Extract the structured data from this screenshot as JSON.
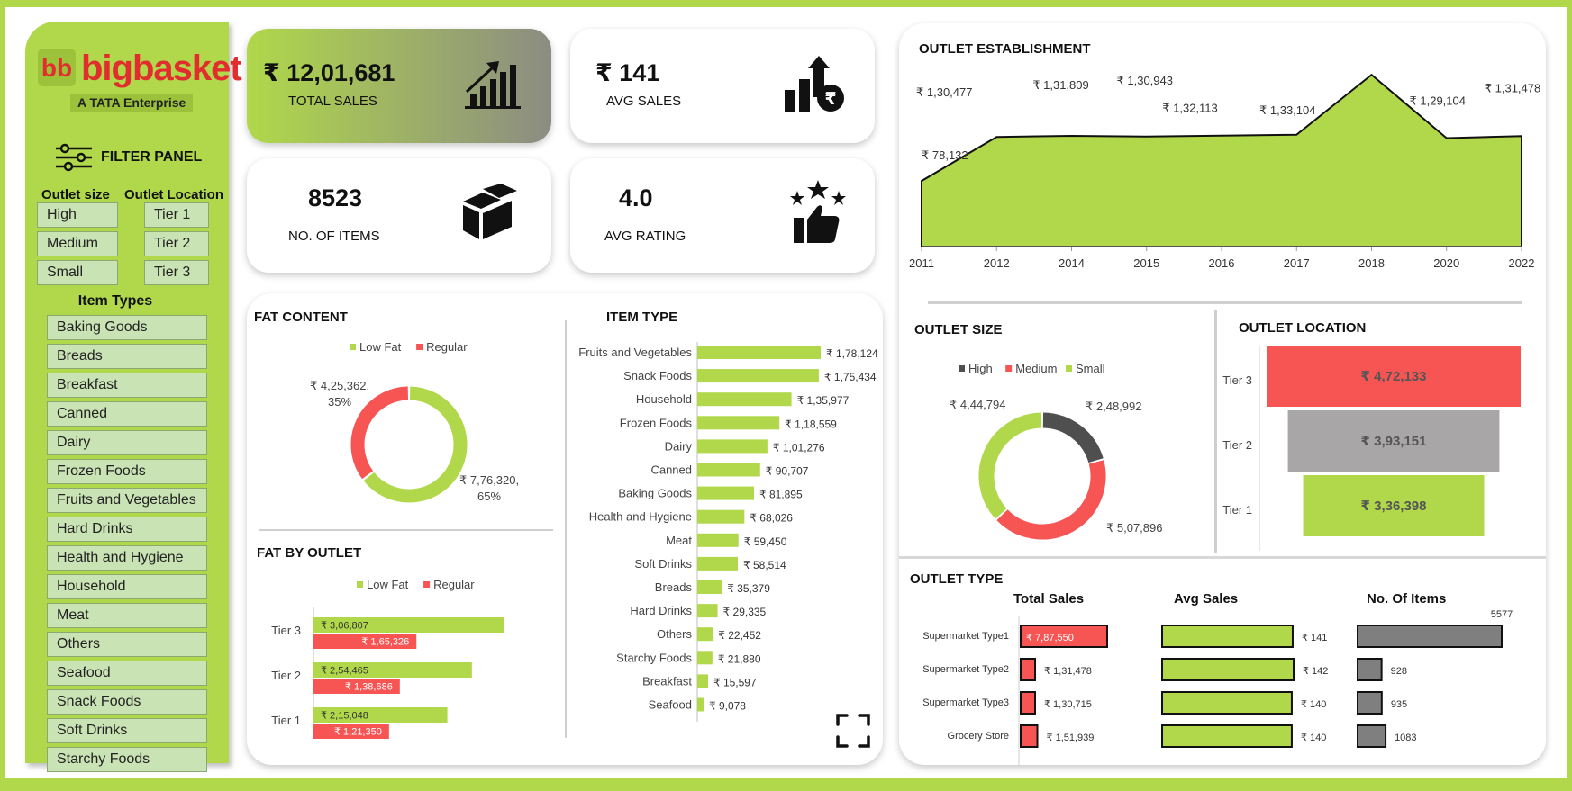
{
  "brand": {
    "name": "bigbasket",
    "subtitle": "A TATA Enterprise",
    "mark": "bb"
  },
  "filters": {
    "title": "FILTER PANEL",
    "outlet_size": {
      "label": "Outlet size",
      "options": [
        "High",
        "Medium",
        "Small"
      ]
    },
    "outlet_location": {
      "label": "Outlet Location",
      "options": [
        "Tier 1",
        "Tier 2",
        "Tier 3"
      ]
    },
    "item_types": {
      "label": "Item Types",
      "options": [
        "Baking Goods",
        "Breads",
        "Breakfast",
        "Canned",
        "Dairy",
        "Frozen Foods",
        "Fruits and Vegetables",
        "Hard Drinks",
        "Health and Hygiene",
        "Household",
        "Meat",
        "Others",
        "Seafood",
        "Snack Foods",
        "Soft Drinks",
        "Starchy Foods"
      ]
    }
  },
  "kpis": {
    "total_sales": {
      "value": "₹ 12,01,681",
      "label": "TOTAL SALES",
      "icon": "growth-chart-icon"
    },
    "avg_sales": {
      "value": "₹ 141",
      "label": "AVG SALES",
      "icon": "rupee-growth-icon"
    },
    "items": {
      "value": "8523",
      "label": "NO. OF ITEMS",
      "icon": "boxes-icon"
    },
    "rating": {
      "value": "4.0",
      "label": "AVG RATING",
      "icon": "thumbs-up-stars-icon"
    }
  },
  "colors": {
    "green": "#b0d84a",
    "red": "#f75454",
    "grey": "#7f7f7f",
    "dark": "#4f4f4f",
    "light_grey": "#a8a6a6"
  },
  "chart_data": [
    {
      "id": "fat_content",
      "type": "pie",
      "title": "FAT CONTENT",
      "categories": [
        "Low Fat",
        "Regular"
      ],
      "values": [
        776320,
        425362
      ],
      "labels": [
        "₹ 7,76,320,",
        "₹ 4,25,362,"
      ],
      "percents": [
        "65%",
        "35%"
      ]
    },
    {
      "id": "fat_by_outlet",
      "type": "bar",
      "title": "FAT BY OUTLET",
      "categories": [
        "Tier 3",
        "Tier 2",
        "Tier 1"
      ],
      "series": [
        {
          "name": "Low Fat",
          "values": [
            306807,
            254465,
            215048
          ],
          "labels": [
            "₹ 3,06,807",
            "₹ 2,54,465",
            "₹ 2,15,048"
          ]
        },
        {
          "name": "Regular",
          "values": [
            165326,
            138686,
            121350
          ],
          "labels": [
            "₹ 1,65,326",
            "₹ 1,38,686",
            "₹ 1,21,350"
          ]
        }
      ]
    },
    {
      "id": "item_type",
      "type": "bar",
      "title": "ITEM TYPE",
      "categories": [
        "Fruits and Vegetables",
        "Snack Foods",
        "Household",
        "Frozen Foods",
        "Dairy",
        "Canned",
        "Baking Goods",
        "Health and Hygiene",
        "Meat",
        "Soft Drinks",
        "Breads",
        "Hard Drinks",
        "Others",
        "Starchy Foods",
        "Breakfast",
        "Seafood"
      ],
      "values": [
        178124,
        175434,
        135977,
        118559,
        101276,
        90707,
        81895,
        68026,
        59450,
        58514,
        35379,
        29335,
        22452,
        21880,
        15597,
        9078
      ],
      "labels": [
        "₹ 1,78,124",
        "₹ 1,75,434",
        "₹ 1,35,977",
        "₹ 1,18,559",
        "₹ 1,01,276",
        "₹ 90,707",
        "₹ 81,895",
        "₹ 68,026",
        "₹ 59,450",
        "₹ 58,514",
        "₹ 35,379",
        "₹ 29,335",
        "₹ 22,452",
        "₹ 21,880",
        "₹ 15,597",
        "₹ 9,078"
      ]
    },
    {
      "id": "outlet_establishment",
      "type": "area",
      "title": "OUTLET ESTABLISHMENT",
      "categories": [
        "2011",
        "2012",
        "2014",
        "2015",
        "2016",
        "2017",
        "2018",
        "2020",
        "2022"
      ],
      "values": [
        78132,
        130477,
        131809,
        130943,
        132113,
        133104,
        204522,
        129104,
        131478
      ],
      "labels": [
        "₹ 78,132",
        "₹ 1,30,477",
        "₹ 1,31,809",
        "₹ 1,30,943",
        "₹ 1,32,113",
        "₹ 1,33,104",
        "₹ 2,04,522",
        "₹ 1,29,104",
        "₹ 1,31,478"
      ],
      "ylim": [
        0,
        210000
      ]
    },
    {
      "id": "outlet_size",
      "type": "pie",
      "title": "OUTLET SIZE",
      "categories": [
        "High",
        "Medium",
        "Small"
      ],
      "values": [
        248992,
        507896,
        444794
      ],
      "labels": [
        "₹ 2,48,992",
        "₹ 5,07,896",
        "₹ 4,44,794"
      ]
    },
    {
      "id": "outlet_location",
      "type": "bar",
      "title": "OUTLET LOCATION",
      "categories": [
        "Tier 3",
        "Tier 2",
        "Tier 1"
      ],
      "values": [
        472133,
        393151,
        336398
      ],
      "labels": [
        "₹ 4,72,133",
        "₹ 3,93,151",
        "₹ 3,36,398"
      ]
    },
    {
      "id": "outlet_type",
      "type": "table",
      "title": "OUTLET TYPE",
      "rows": [
        "Supermarket Type1",
        "Supermarket Type2",
        "Supermarket Type3",
        "Grocery Store"
      ],
      "columns": [
        {
          "name": "Total Sales",
          "values": [
            787550,
            131478,
            130715,
            151939
          ],
          "labels": [
            "₹ 7,87,550",
            "₹ 1,31,478",
            "₹ 1,30,715",
            "₹ 1,51,939"
          ]
        },
        {
          "name": "Avg Sales",
          "values": [
            141,
            142,
            140,
            140
          ],
          "labels": [
            "₹ 141",
            "₹ 142",
            "₹ 140",
            "₹ 140"
          ]
        },
        {
          "name": "No. Of Items",
          "values": [
            5577,
            928,
            935,
            1083
          ],
          "labels": [
            "5577",
            "928",
            "935",
            "1083"
          ]
        }
      ]
    }
  ]
}
